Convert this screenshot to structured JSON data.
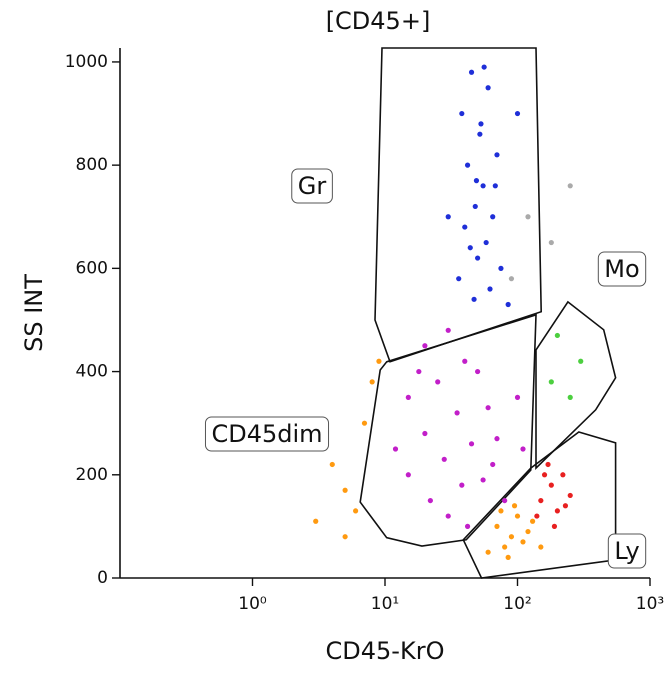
{
  "chart_data": {
    "type": "scatter",
    "title": "[CD45+]",
    "xlabel": "CD45-KrO",
    "ylabel": "SS INT",
    "xscale": "log",
    "xlim": [
      0.1,
      1000
    ],
    "ylim": [
      0,
      1027
    ],
    "xticks": [
      {
        "value": 1,
        "label": "10⁰"
      },
      {
        "value": 10,
        "label": "10¹"
      },
      {
        "value": 100,
        "label": "10²"
      },
      {
        "value": 1000,
        "label": "10³"
      }
    ],
    "yticks": [
      0,
      200,
      400,
      600,
      800,
      1000
    ],
    "gates": [
      {
        "label": "Gr",
        "points": [
          [
            9.5,
            1027
          ],
          [
            8.4,
            500
          ],
          [
            10.9,
            419
          ],
          [
            151,
            516
          ],
          [
            138,
            1027
          ]
        ]
      },
      {
        "label": "CD45dim",
        "points": [
          [
            10.3,
            419
          ],
          [
            138,
            510
          ],
          [
            126,
            209
          ],
          [
            41,
            74
          ],
          [
            19,
            62
          ],
          [
            10.3,
            78
          ],
          [
            6.5,
            147
          ],
          [
            9.2,
            403
          ]
        ]
      },
      {
        "label": "Mo",
        "points": [
          [
            138,
            442
          ],
          [
            240,
            535
          ],
          [
            447,
            481
          ],
          [
            550,
            388
          ],
          [
            389,
            326
          ],
          [
            138,
            213
          ]
        ]
      },
      {
        "label": "Ly",
        "points": [
          [
            39,
            74
          ],
          [
            126,
            213
          ],
          [
            290,
            283
          ],
          [
            550,
            262
          ],
          [
            550,
            35
          ],
          [
            53.5,
            0
          ]
        ]
      }
    ],
    "series": [
      {
        "color": "#1f2fd8",
        "x": [
          45,
          60,
          38,
          52,
          70,
          42,
          55,
          48,
          65,
          40,
          58,
          50,
          75,
          36,
          62,
          47,
          85,
          53,
          44,
          68,
          30,
          100,
          56,
          49
        ],
        "y": [
          980,
          950,
          900,
          860,
          820,
          800,
          760,
          720,
          700,
          680,
          650,
          620,
          600,
          580,
          560,
          540,
          530,
          880,
          640,
          760,
          700,
          900,
          990,
          770
        ]
      },
      {
        "color": "#c21fc9",
        "x": [
          20,
          30,
          40,
          25,
          50,
          15,
          35,
          60,
          20,
          45,
          28,
          70,
          15,
          38,
          55,
          22,
          30,
          80,
          12,
          100,
          42,
          65,
          18,
          110
        ],
        "y": [
          450,
          480,
          420,
          380,
          400,
          350,
          320,
          330,
          280,
          260,
          230,
          270,
          200,
          180,
          190,
          150,
          120,
          150,
          250,
          350,
          100,
          220,
          400,
          250
        ]
      },
      {
        "color": "#ff9a10",
        "x": [
          70,
          90,
          100,
          80,
          120,
          60,
          110,
          95,
          130,
          75,
          150,
          85,
          5,
          6,
          4,
          7,
          8,
          9,
          3,
          5
        ],
        "y": [
          100,
          80,
          120,
          60,
          90,
          50,
          70,
          140,
          110,
          130,
          60,
          40,
          170,
          130,
          220,
          300,
          380,
          420,
          110,
          80
        ]
      },
      {
        "color": "#e82020",
        "x": [
          150,
          180,
          200,
          170,
          220,
          140,
          250,
          190,
          160,
          230
        ],
        "y": [
          150,
          180,
          130,
          220,
          200,
          120,
          160,
          100,
          200,
          140
        ]
      },
      {
        "color": "#4ccf3f",
        "x": [
          200,
          300,
          180,
          250
        ],
        "y": [
          470,
          420,
          380,
          350
        ]
      },
      {
        "color": "#aaaaaa",
        "x": [
          180,
          250,
          120,
          90
        ],
        "y": [
          650,
          760,
          700,
          580
        ]
      }
    ]
  }
}
